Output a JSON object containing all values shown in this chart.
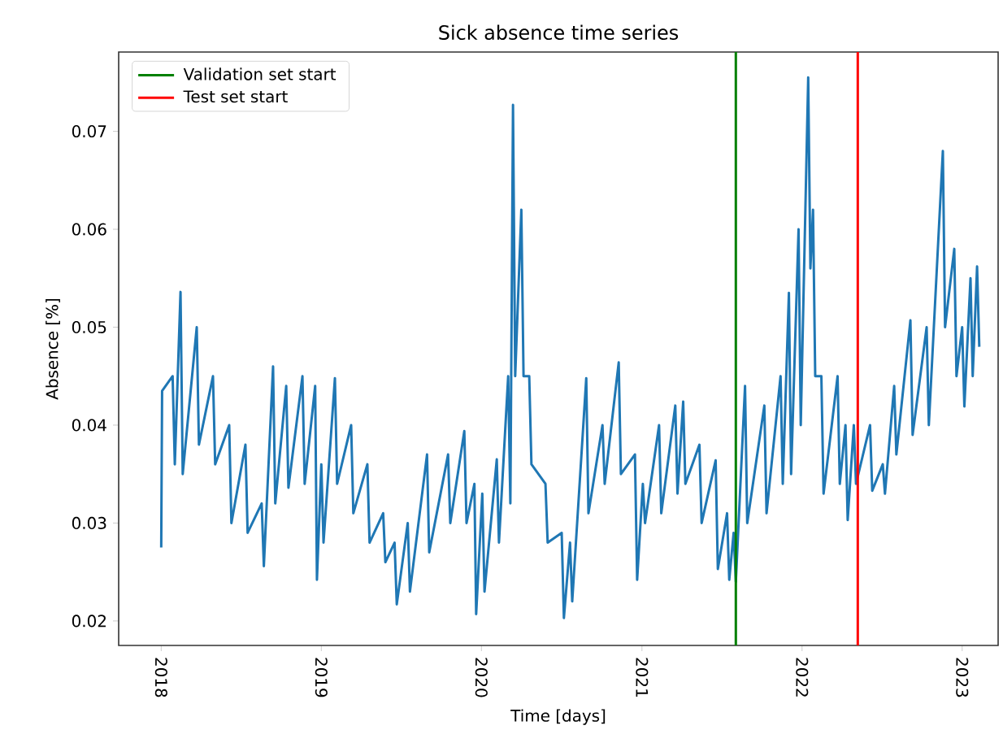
{
  "chart_data": {
    "type": "line",
    "title": "Sick absence time series",
    "xlabel": "Time [days]",
    "ylabel": "Absence [%]",
    "x": [
      "2018-01-01",
      "2018-01-03",
      "2018-01-27",
      "2018-02-01",
      "2018-02-14",
      "2018-02-19",
      "2018-03-23",
      "2018-03-28",
      "2018-04-29",
      "2018-05-04",
      "2018-06-05",
      "2018-06-10",
      "2018-07-12",
      "2018-07-17",
      "2018-08-18",
      "2018-08-23",
      "2018-09-13",
      "2018-09-18",
      "2018-10-13",
      "2018-10-18",
      "2018-11-19",
      "2018-11-24",
      "2018-12-18",
      "2018-12-22",
      "2019-01-01",
      "2019-01-06",
      "2019-02-01",
      "2019-02-06",
      "2019-03-10",
      "2019-03-15",
      "2019-04-16",
      "2019-04-21",
      "2019-05-22",
      "2019-05-27",
      "2019-06-17",
      "2019-06-22",
      "2019-07-17",
      "2019-07-22",
      "2019-08-30",
      "2019-09-04",
      "2019-10-17",
      "2019-10-22",
      "2019-11-23",
      "2019-11-28",
      "2019-12-16",
      "2019-12-20",
      "2020-01-03",
      "2020-01-08",
      "2020-02-05",
      "2020-02-10",
      "2020-03-02",
      "2020-03-07",
      "2020-03-13",
      "2020-03-18",
      "2020-04-01",
      "2020-04-06",
      "2020-04-19",
      "2020-04-24",
      "2020-05-26",
      "2020-05-31",
      "2020-07-02",
      "2020-07-07",
      "2020-07-21",
      "2020-07-26",
      "2020-08-27",
      "2020-09-01",
      "2020-10-03",
      "2020-10-08",
      "2020-11-09",
      "2020-11-14",
      "2020-12-16",
      "2020-12-21",
      "2021-01-03",
      "2021-01-08",
      "2021-02-09",
      "2021-02-14",
      "2021-03-18",
      "2021-03-23",
      "2021-04-05",
      "2021-04-10",
      "2021-05-12",
      "2021-05-17",
      "2021-06-18",
      "2021-06-23",
      "2021-07-14",
      "2021-07-19",
      "2021-07-29",
      "2021-08-03",
      "2021-08-24",
      "2021-08-29",
      "2021-10-07",
      "2021-10-12",
      "2021-11-13",
      "2021-11-18",
      "2021-12-02",
      "2021-12-07",
      "2021-12-24",
      "2021-12-29",
      "2022-01-15",
      "2022-01-20",
      "2022-01-26",
      "2022-01-31",
      "2022-02-14",
      "2022-02-19",
      "2022-03-23",
      "2022-03-28",
      "2022-04-10",
      "2022-04-15",
      "2022-04-29",
      "2022-05-04",
      "2022-06-05",
      "2022-06-10",
      "2022-07-04",
      "2022-07-09",
      "2022-07-30",
      "2022-08-04",
      "2022-09-05",
      "2022-09-10",
      "2022-10-12",
      "2022-10-17",
      "2022-11-18",
      "2022-11-23",
      "2022-12-14",
      "2022-12-19",
      "2023-01-01",
      "2023-01-06",
      "2023-01-20",
      "2023-01-25",
      "2023-02-04",
      "2023-02-09"
    ],
    "series": [
      {
        "color": "#1f77b4",
        "values": [
          0.0275,
          0.0435,
          0.045,
          0.036,
          0.0536,
          0.035,
          0.05,
          0.038,
          0.045,
          0.036,
          0.04,
          0.03,
          0.038,
          0.029,
          0.032,
          0.0256,
          0.046,
          0.032,
          0.044,
          0.0336,
          0.045,
          0.034,
          0.044,
          0.0242,
          0.036,
          0.028,
          0.0448,
          0.034,
          0.04,
          0.031,
          0.036,
          0.028,
          0.031,
          0.026,
          0.028,
          0.0217,
          0.03,
          0.023,
          0.037,
          0.027,
          0.037,
          0.03,
          0.0394,
          0.03,
          0.034,
          0.0207,
          0.033,
          0.023,
          0.0365,
          0.028,
          0.045,
          0.032,
          0.0727,
          0.045,
          0.062,
          0.045,
          0.045,
          0.036,
          0.034,
          0.028,
          0.029,
          0.0203,
          0.028,
          0.022,
          0.0448,
          0.031,
          0.04,
          0.034,
          0.0464,
          0.035,
          0.037,
          0.0242,
          0.034,
          0.03,
          0.04,
          0.031,
          0.042,
          0.033,
          0.0424,
          0.034,
          0.038,
          0.03,
          0.0364,
          0.0253,
          0.031,
          0.0242,
          0.029,
          0.024,
          0.044,
          0.03,
          0.042,
          0.031,
          0.045,
          0.034,
          0.0535,
          0.035,
          0.06,
          0.04,
          0.0755,
          0.056,
          0.062,
          0.045,
          0.045,
          0.033,
          0.045,
          0.034,
          0.04,
          0.0303,
          0.04,
          0.034,
          0.04,
          0.0333,
          0.036,
          0.033,
          0.044,
          0.037,
          0.0507,
          0.039,
          0.05,
          0.04,
          0.068,
          0.05,
          0.058,
          0.045,
          0.05,
          0.0419,
          0.055,
          0.045,
          0.0562,
          0.048
        ]
      },
      {
        "name": "Validation set start",
        "color": "#008000",
        "x": [
          "2021-08-03",
          "2021-08-03"
        ],
        "values": [
          0.0175,
          0.0781
        ]
      },
      {
        "name": "Test set start",
        "color": "#ff0000",
        "x": [
          "2022-05-08",
          "2022-05-08"
        ],
        "values": [
          0.0175,
          0.0781
        ]
      }
    ],
    "xlim": [
      "2017-09-26",
      "2023-03-24"
    ],
    "xticks": [
      {
        "value": "2018-01-01",
        "label": "2018"
      },
      {
        "value": "2019-01-01",
        "label": "2019"
      },
      {
        "value": "2020-01-01",
        "label": "2020"
      },
      {
        "value": "2021-01-01",
        "label": "2021"
      },
      {
        "value": "2022-01-01",
        "label": "2022"
      },
      {
        "value": "2023-01-01",
        "label": "2023"
      }
    ],
    "ylim": [
      0.0175,
      0.0781
    ],
    "yticks": [
      0.02,
      0.03,
      0.04,
      0.05,
      0.06,
      0.07
    ],
    "legend": "top left",
    "grid": false
  }
}
